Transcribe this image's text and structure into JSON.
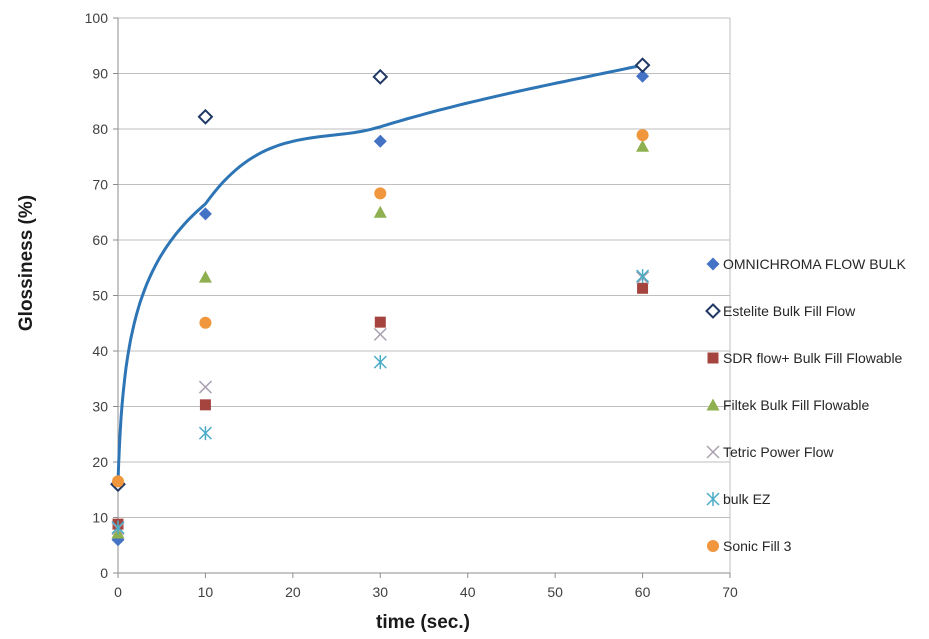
{
  "chart_data": {
    "type": "scatter",
    "title": "",
    "xlabel": "time (sec.)",
    "ylabel": "Glossiness (%)",
    "xlim": [
      0,
      70
    ],
    "ylim": [
      0,
      100
    ],
    "xticks": [
      0,
      10,
      20,
      30,
      40,
      50,
      60,
      70
    ],
    "yticks": [
      0,
      10,
      20,
      30,
      40,
      50,
      60,
      70,
      80,
      90,
      100
    ],
    "grid": "horizontal",
    "legend_position": "right",
    "series": [
      {
        "name": "OMNICHROMA FLOW BULK",
        "marker": "diamond-filled",
        "color": "#4472c4",
        "points": [
          [
            0,
            6
          ],
          [
            10,
            64.7
          ],
          [
            30,
            77.8
          ],
          [
            60,
            89.5
          ]
        ]
      },
      {
        "name": "Estelite Bulk Fill Flow",
        "marker": "diamond-open",
        "color": "#1f3864",
        "points": [
          [
            0,
            16
          ],
          [
            10,
            82.2
          ],
          [
            30,
            89.4
          ],
          [
            60,
            91.5
          ]
        ]
      },
      {
        "name": "SDR flow+ Bulk Fill Flowable",
        "marker": "square",
        "color": "#a5443f",
        "points": [
          [
            0,
            8.8
          ],
          [
            10,
            30.3
          ],
          [
            30,
            45.2
          ],
          [
            60,
            51.3
          ]
        ]
      },
      {
        "name": "Filtek Bulk Fill Flowable",
        "marker": "triangle",
        "color": "#8fb050",
        "points": [
          [
            0,
            7.2
          ],
          [
            10,
            53.3
          ],
          [
            30,
            65
          ],
          [
            60,
            76.9
          ]
        ]
      },
      {
        "name": "Tetric Power Flow",
        "marker": "x",
        "color": "#a9a0b0",
        "points": [
          [
            0,
            8
          ],
          [
            10,
            33.5
          ],
          [
            30,
            43
          ],
          [
            60,
            53.2
          ]
        ]
      },
      {
        "name": "bulk EZ",
        "marker": "asterisk",
        "color": "#4bacc6",
        "points": [
          [
            0,
            8.2
          ],
          [
            10,
            25.2
          ],
          [
            30,
            38
          ],
          [
            60,
            53.5
          ]
        ]
      },
      {
        "name": "Sonic Fill 3",
        "marker": "circle",
        "color": "#f0963c",
        "points": [
          [
            0,
            16.5
          ],
          [
            10,
            45.1
          ],
          [
            30,
            68.4
          ],
          [
            60,
            78.9
          ]
        ]
      }
    ],
    "trendline": {
      "type": "logarithmic",
      "color": "#2e75b6",
      "points": [
        [
          0,
          16
        ],
        [
          10,
          66.5
        ],
        [
          30,
          80.4
        ],
        [
          60,
          91.5
        ]
      ]
    }
  }
}
